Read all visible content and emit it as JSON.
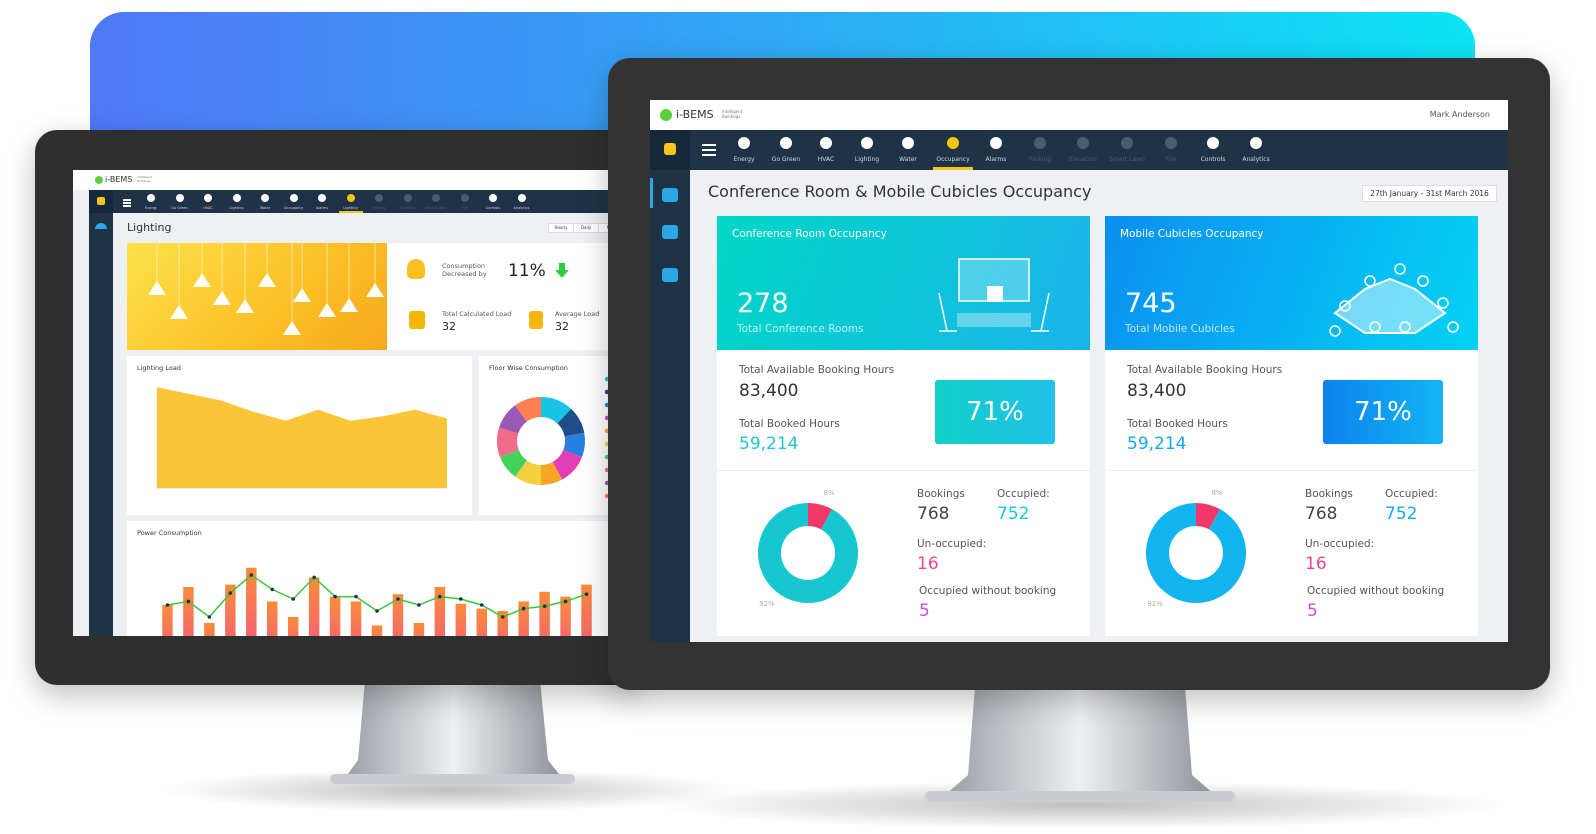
{
  "left_screen": {
    "brand": "i-BEMS",
    "tagline": "Intelligent Buildings",
    "nav": [
      "Energy",
      "Go Green",
      "HVAC",
      "Lighting",
      "Water",
      "Occupancy",
      "Alarms",
      "Lighting",
      "Parking",
      "Elevators",
      "Smart Lawn",
      "Fire",
      "Controls",
      "Analytics"
    ],
    "active": 7,
    "disabled": [
      8,
      9,
      10,
      11
    ],
    "title": "Lighting",
    "tabs": [
      "Hourly",
      "Daily",
      "Mon"
    ],
    "consumption_label": "Consumption Decreased by",
    "consumption_change": "11%",
    "total_load_label": "Total Calculated Load",
    "total_load": "32",
    "average_load_label": "Average Load",
    "average_load": "32",
    "lighting_load": {
      "type": "area",
      "title": "Lighting Load",
      "color": "#fbbf24",
      "values": [
        90,
        84,
        78,
        68,
        60,
        70,
        60,
        64,
        70,
        62
      ],
      "ylim": [
        0,
        100
      ]
    },
    "floor_wise": {
      "type": "donut",
      "title": "Floor Wise Consumption",
      "values": [
        12,
        10,
        9,
        11,
        8,
        10,
        9,
        11,
        10,
        10
      ],
      "colors": [
        "#17c3e6",
        "#1d4e89",
        "#2a7de1",
        "#e23fb6",
        "#f6a623",
        "#f4d03f",
        "#43d15a",
        "#f06a8a",
        "#9b59b6",
        "#ff7f50"
      ]
    },
    "power": {
      "type": "bar-line",
      "title": "Power Consumption",
      "bars": [
        55,
        70,
        40,
        72,
        86,
        58,
        45,
        78,
        62,
        58,
        38,
        64,
        40,
        70,
        56,
        52,
        50,
        58,
        66,
        62,
        72
      ],
      "line": [
        55,
        58,
        45,
        65,
        80,
        68,
        60,
        78,
        62,
        62,
        50,
        60,
        55,
        62,
        60,
        55,
        45,
        52,
        54,
        58,
        64
      ],
      "ylim": [
        0,
        100
      ]
    }
  },
  "right_screen": {
    "brand": "i-BEMS",
    "tagline": "Intelligent Buildings",
    "user": "Mark Anderson",
    "nav": [
      "Energy",
      "Go Green",
      "HVAC",
      "Lighting",
      "Water",
      "Occupancy",
      "Alarms",
      "Parking",
      "Elevators",
      "Smart Lawn",
      "Fire",
      "Controls",
      "Analytics"
    ],
    "active": 5,
    "disabled": [
      7,
      8,
      9,
      10
    ],
    "title": "Conference Room & Mobile Cubicles Occupancy",
    "date_range": "27th January - 31st March 2016",
    "cards": [
      {
        "header": "Conference Room Occupancy",
        "count": "278",
        "count_label": "Total Conference Rooms",
        "available_label": "Total Available Booking Hours",
        "available": "83,400",
        "booked_label": "Total Booked Hours",
        "booked": "59,214",
        "percent": "71%",
        "color": "#1ec6d4",
        "donut": {
          "values": [
            8,
            92
          ],
          "value_labels": [
            "8%",
            "92%"
          ],
          "colors": [
            "#f0386b",
            "#16c7cf"
          ]
        },
        "bookings_label": "Bookings",
        "bookings": "768",
        "occupied_label": "Occupied:",
        "occupied": "752",
        "unoccupied_label": "Un-occupied:",
        "unoccupied": "16",
        "without_label": "Occupied without booking",
        "without": "5"
      },
      {
        "header": "Mobile Cubicles Occupancy",
        "count": "745",
        "count_label": "Total Mobile Cubicles",
        "available_label": "Total Available Booking Hours",
        "available": "83,400",
        "booked_label": "Total Booked Hours",
        "booked": "59,214",
        "percent": "71%",
        "color": "#13aaf0",
        "donut": {
          "values": [
            8,
            92
          ],
          "value_labels": [
            "8%",
            "92%"
          ],
          "colors": [
            "#f0386b",
            "#10b4ee"
          ]
        },
        "bookings_label": "Bookings",
        "bookings": "768",
        "occupied_label": "Occupied:",
        "occupied": "752",
        "unoccupied_label": "Un-occupied:",
        "unoccupied": "16",
        "without_label": "Occupied without booking",
        "without": "5"
      }
    ]
  }
}
